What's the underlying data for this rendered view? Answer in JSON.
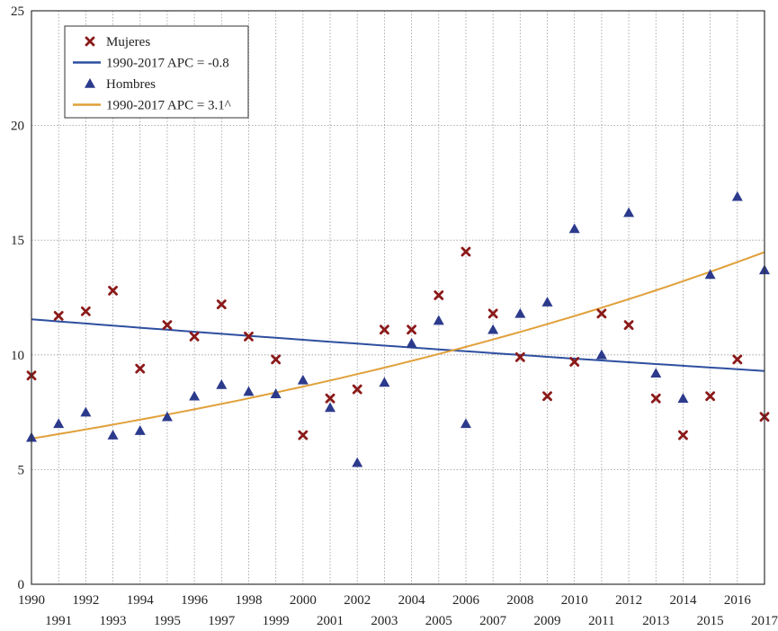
{
  "chart_data": {
    "type": "scatter",
    "title": "",
    "xlabel": "",
    "ylabel": "",
    "xlim": [
      1990,
      2017
    ],
    "ylim": [
      0,
      25
    ],
    "grid": true,
    "legend_position": "top-left",
    "x_ticks_top_row": [
      "1990",
      "1992",
      "1994",
      "1996",
      "1998",
      "2000",
      "2002",
      "2004",
      "2006",
      "2008",
      "2010",
      "2012",
      "2014",
      "2016"
    ],
    "x_ticks_bottom_row": [
      "1991",
      "1993",
      "1995",
      "1997",
      "1999",
      "2001",
      "2003",
      "2005",
      "2007",
      "2009",
      "2011",
      "2013",
      "2015",
      "2017"
    ],
    "y_ticks": [
      "0",
      "5",
      "10",
      "15",
      "20",
      "25"
    ],
    "x": [
      1990,
      1991,
      1992,
      1993,
      1994,
      1995,
      1996,
      1997,
      1998,
      1999,
      2000,
      2001,
      2002,
      2003,
      2004,
      2005,
      2006,
      2007,
      2008,
      2009,
      2010,
      2011,
      2012,
      2013,
      2014,
      2015,
      2016,
      2017
    ],
    "series": [
      {
        "name": "Mujeres",
        "marker": "x",
        "color": "#8b1a1a",
        "values": [
          9.1,
          11.7,
          11.9,
          12.8,
          9.4,
          11.3,
          10.8,
          12.2,
          10.8,
          9.8,
          6.5,
          8.1,
          8.5,
          11.1,
          11.1,
          12.6,
          14.5,
          11.8,
          9.9,
          8.2,
          9.7,
          11.8,
          11.3,
          8.1,
          6.5,
          8.2,
          9.8,
          7.3
        ]
      },
      {
        "name": "Hombres",
        "marker": "triangle",
        "color": "#2c3a8c",
        "values": [
          6.4,
          7.0,
          7.5,
          6.5,
          6.7,
          7.3,
          8.2,
          8.7,
          8.4,
          8.3,
          8.9,
          7.7,
          5.3,
          8.8,
          10.5,
          11.5,
          7.0,
          11.1,
          11.8,
          12.3,
          15.5,
          10.0,
          16.2,
          9.2,
          8.1,
          13.5,
          16.9,
          13.7
        ]
      }
    ],
    "trend_lines": [
      {
        "name": "1990-2017 APC = -0.8",
        "type": "exponential",
        "color": "#2e4fa0",
        "start": 11.55,
        "apc": -0.8
      },
      {
        "name": "1990-2017 APC = 3.1^",
        "type": "exponential",
        "color": "#e0a03a",
        "start": 6.35,
        "apc": 3.1
      }
    ],
    "legend": [
      {
        "label": "Mujeres",
        "kind": "x-marker",
        "color": "#8b1a1a"
      },
      {
        "label": "1990-2017 APC = -0.8",
        "kind": "line",
        "color": "#2e4fa0"
      },
      {
        "label": "Hombres",
        "kind": "triangle-marker",
        "color": "#2c3a8c"
      },
      {
        "label": "1990-2017 APC = 3.1^",
        "kind": "line",
        "color": "#e0a03a"
      }
    ]
  }
}
